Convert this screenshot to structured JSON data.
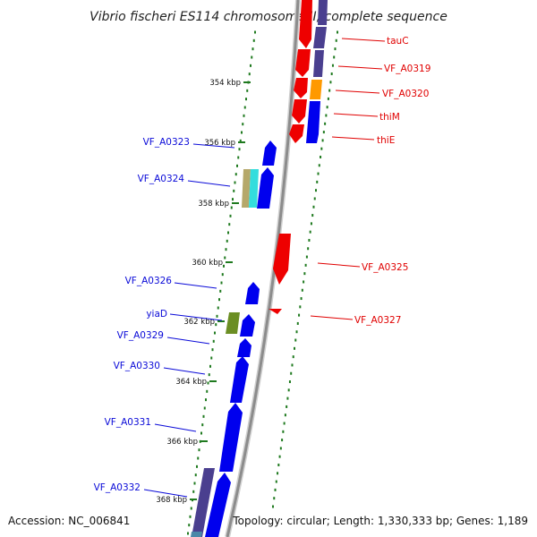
{
  "title": "Vibrio fischeri ES114 chromosome II, complete sequence",
  "footer": {
    "accession": "Accession: NC_006841",
    "summary": "Topology: circular; Length: 1,330,333 bp; Genes: 1,189"
  },
  "colors": {
    "backbone": "#8c8c8c",
    "tick_dots": "#1f7a1f",
    "forward_label": "#0a0ad8",
    "reverse_label": "#e00000",
    "forward_gene": "#0000ee",
    "reverse_gene": "#ee0000"
  },
  "ticks": [
    {
      "label": "354 kbp"
    },
    {
      "label": "356 kbp"
    },
    {
      "label": "358 kbp"
    },
    {
      "label": "360 kbp"
    },
    {
      "label": "362 kbp"
    },
    {
      "label": "364 kbp"
    },
    {
      "label": "366 kbp"
    },
    {
      "label": "368 kbp"
    }
  ],
  "genes_reverse": [
    {
      "label": "tauC",
      "color": "#ee0000"
    },
    {
      "label": "VF_A0319",
      "color": "#ee0000"
    },
    {
      "label": "VF_A0320",
      "color": "#ee0000"
    },
    {
      "label": "thiM",
      "color": "#ee0000"
    },
    {
      "label": "thiE",
      "color": "#ee0000"
    },
    {
      "label": "VF_A0325",
      "color": "#ee0000"
    },
    {
      "label": "VF_A0327",
      "color": "#ee0000"
    }
  ],
  "genes_forward": [
    {
      "label": "VF_A0323",
      "color": "#0000ee"
    },
    {
      "label": "VF_A0324",
      "color": "#0000ee"
    },
    {
      "label": "VF_A0326",
      "color": "#0000ee"
    },
    {
      "label": "yiaD",
      "color": "#0000ee"
    },
    {
      "label": "VF_A0329",
      "color": "#0000ee"
    },
    {
      "label": "VF_A0330",
      "color": "#0000ee"
    },
    {
      "label": "VF_A0331",
      "color": "#0000ee"
    },
    {
      "label": "VF_A0332",
      "color": "#0000ee"
    }
  ],
  "cog_colors": [
    "#4a3f8f",
    "#ff9900",
    "#b5a86a",
    "#33dddd",
    "#6b8e23",
    "#4a88a8"
  ]
}
